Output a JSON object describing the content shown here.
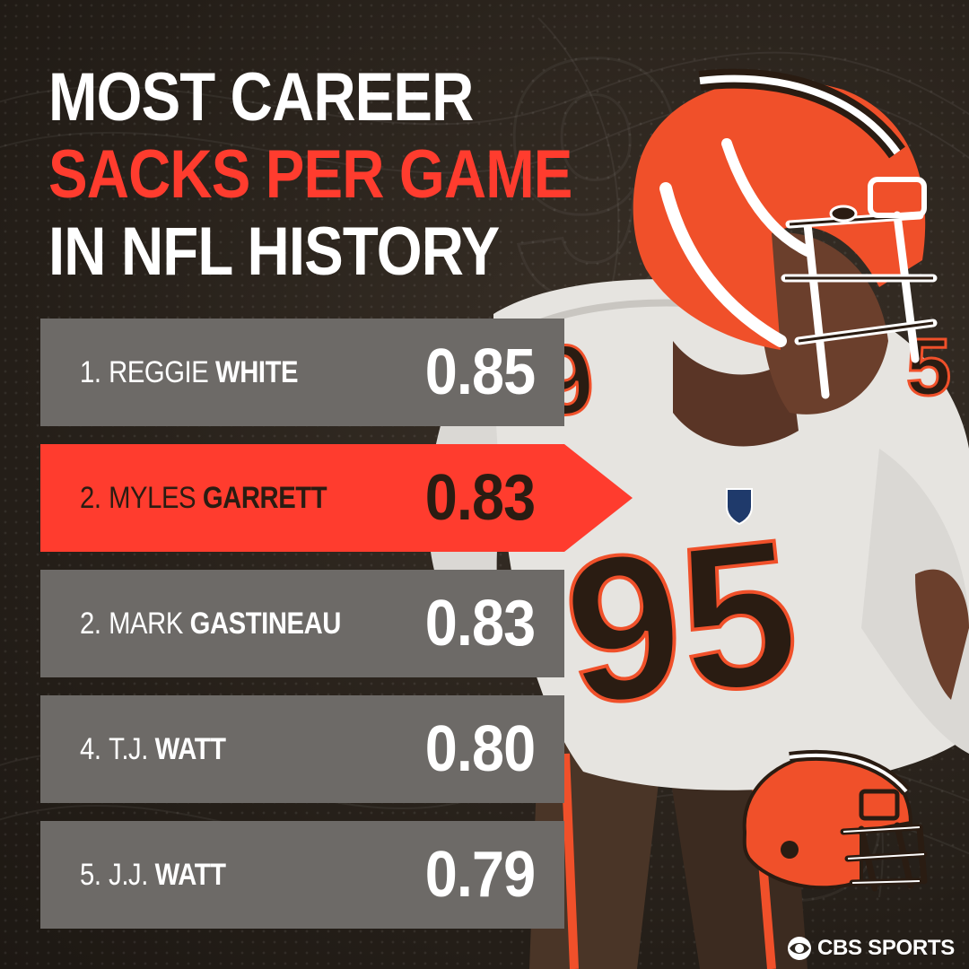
{
  "title": {
    "line1": "MOST CAREER",
    "line2": "SACKS PER GAME",
    "line3": "IN NFL HISTORY"
  },
  "rankings": [
    {
      "rank": "1.",
      "first": "REGGIE",
      "last": "WHITE",
      "value": "0.85",
      "highlighted": false
    },
    {
      "rank": "2.",
      "first": "MYLES",
      "last": "GARRETT",
      "value": "0.83",
      "highlighted": true
    },
    {
      "rank": "2.",
      "first": "MARK",
      "last": "GASTINEAU",
      "value": "0.83",
      "highlighted": false
    },
    {
      "rank": "4.",
      "first": "T.J.",
      "last": "WATT",
      "value": "0.80",
      "highlighted": false
    },
    {
      "rank": "5.",
      "first": "J.J.",
      "last": "WATT",
      "value": "0.79",
      "highlighted": false
    }
  ],
  "jersey_number": "95",
  "brand": {
    "text": "CBS SPORTS",
    "icon": "cbs-eye-icon"
  },
  "team_logo_icon": "browns-helmet-icon",
  "colors": {
    "accent": "#ff3c2e",
    "row_bg": "#6d6a67",
    "background": "#2b241d",
    "helmet_orange": "#f0502a",
    "dark_brown": "#2a1c12"
  }
}
